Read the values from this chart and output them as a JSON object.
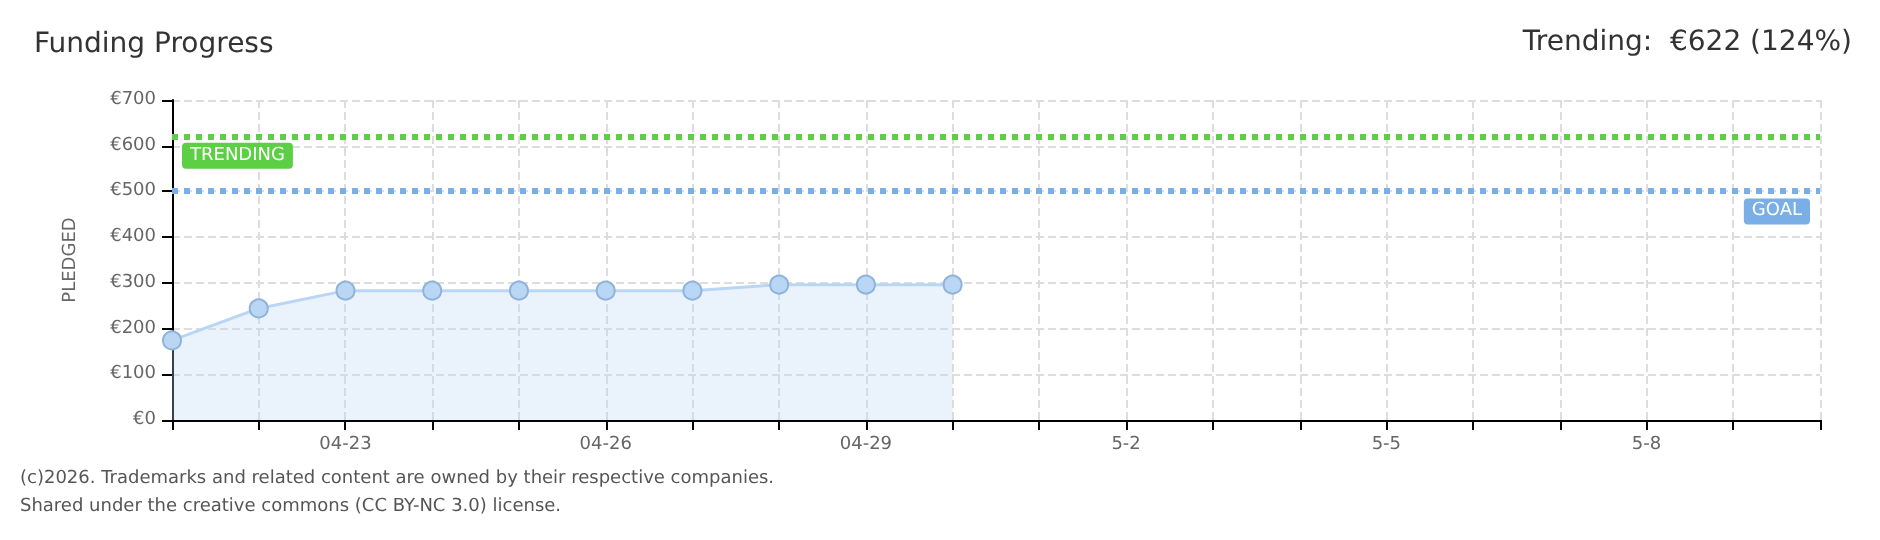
{
  "chart_data": {
    "type": "area",
    "title": "Funding Progress",
    "ylabel": "PLEDGED",
    "annotations": [
      "Trending:  €622 (124%)",
      "(c)2026. Trademarks and related content are owned by their respective companies.",
      "Shared under the creative commons (CC BY-NC 3.0) license."
    ],
    "categories": [
      null,
      null,
      "04-23",
      null,
      null,
      "04-26",
      null,
      null,
      "04-29",
      null,
      null,
      "5-2",
      null,
      null,
      "5-5",
      null,
      null,
      "5-8",
      null,
      null
    ],
    "series": [
      {
        "color": "#b9d7f5",
        "values": [
          174,
          244,
          283,
          283,
          283,
          283,
          283,
          296,
          296,
          296,
          null,
          null,
          null,
          null,
          null,
          null,
          null,
          null,
          null,
          null
        ]
      }
    ],
    "ylim": [
      0,
      700
    ],
    "yticks": [
      {
        "value": 0,
        "label": "€0"
      },
      {
        "value": 100,
        "label": "€100"
      },
      {
        "value": 200,
        "label": "€200"
      },
      {
        "value": 300,
        "label": "€300"
      },
      {
        "value": 400,
        "label": "€400"
      },
      {
        "value": 500,
        "label": "€500"
      },
      {
        "value": 600,
        "label": "€600"
      },
      {
        "value": 700,
        "label": "€700"
      }
    ],
    "ref_lines": [
      {
        "axis": "y",
        "value": 622,
        "label": "TRENDING",
        "color": "#5ccf45",
        "line_style": "dotted"
      },
      {
        "axis": "y",
        "value": 500,
        "label": "GOAL",
        "color": "#7aaee6",
        "line_style": "dotted"
      }
    ],
    "grid": true,
    "marker": "circle"
  }
}
